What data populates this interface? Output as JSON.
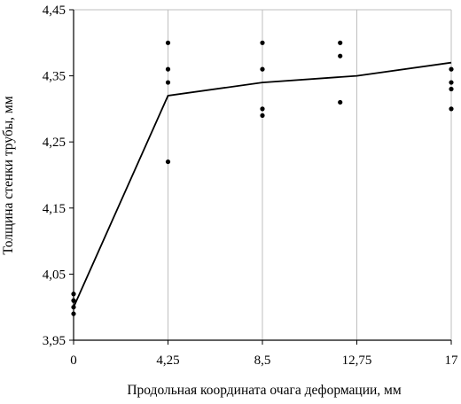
{
  "chart_data": {
    "type": "scatter",
    "title": "",
    "xlabel": "Продольная  координата очага деформации, мм",
    "ylabel": "Толщина стенки трубы, мм",
    "xlim": [
      0,
      17
    ],
    "ylim": [
      3.95,
      4.45
    ],
    "x_ticks": [
      0,
      4.25,
      8.5,
      12.75,
      17
    ],
    "x_tick_labels": [
      "0",
      "4,25",
      "8,5",
      "12,75",
      "17"
    ],
    "y_ticks": [
      3.95,
      4.05,
      4.15,
      4.25,
      4.35,
      4.45
    ],
    "y_tick_labels": [
      "3,95",
      "4,05",
      "4,15",
      "4,25",
      "4,35",
      "4,45"
    ],
    "grid": "vertical",
    "colors": {
      "marks": "#000000",
      "grid": "#bfbfbf",
      "axis": "#000000"
    },
    "series": [
      {
        "type": "scatter",
        "points": [
          [
            0,
            4.02
          ],
          [
            0,
            4.01
          ],
          [
            0,
            4.0
          ],
          [
            0,
            3.99
          ],
          [
            4.25,
            4.4
          ],
          [
            4.25,
            4.36
          ],
          [
            4.25,
            4.34
          ],
          [
            4.25,
            4.22
          ],
          [
            8.5,
            4.4
          ],
          [
            8.5,
            4.36
          ],
          [
            8.5,
            4.3
          ],
          [
            8.5,
            4.29
          ],
          [
            12,
            4.4
          ],
          [
            12,
            4.38
          ],
          [
            12,
            4.31
          ],
          [
            17,
            4.36
          ],
          [
            17,
            4.34
          ],
          [
            17,
            4.33
          ],
          [
            17,
            4.3
          ]
        ]
      },
      {
        "type": "line",
        "points": [
          [
            0,
            4.0
          ],
          [
            4.25,
            4.32
          ],
          [
            8.5,
            4.34
          ],
          [
            12.75,
            4.35
          ],
          [
            17,
            4.37
          ]
        ]
      }
    ]
  }
}
